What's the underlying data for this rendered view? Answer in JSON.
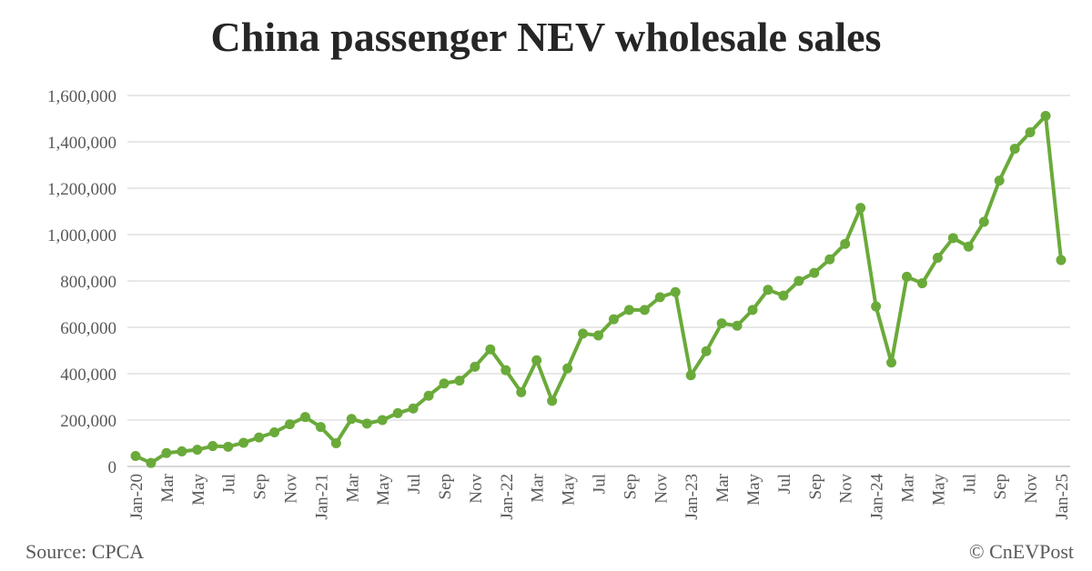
{
  "chart_data": {
    "type": "line",
    "title": "China passenger NEV wholesale sales",
    "xlabel": "",
    "ylabel": "",
    "ylim": [
      0,
      1600000
    ],
    "yticks": [
      "0",
      "200,000",
      "400,000",
      "600,000",
      "800,000",
      "1,000,000",
      "1,200,000",
      "1,400,000",
      "1,600,000"
    ],
    "grid": true,
    "color": "#6aaa3a",
    "x": [
      "Jan-20",
      "Feb",
      "Mar",
      "Apr",
      "May",
      "Jun",
      "Jul",
      "Aug",
      "Sep",
      "Oct",
      "Nov",
      "Dec",
      "Jan-21",
      "Feb",
      "Mar",
      "Apr",
      "May",
      "Jun",
      "Jul",
      "Aug",
      "Sep",
      "Oct",
      "Nov",
      "Dec",
      "Jan-22",
      "Feb",
      "Mar",
      "Apr",
      "May",
      "Jun",
      "Jul",
      "Aug",
      "Sep",
      "Oct",
      "Nov",
      "Dec",
      "Jan-23",
      "Feb",
      "Mar",
      "Apr",
      "May",
      "Jun",
      "Jul",
      "Aug",
      "Sep",
      "Oct",
      "Nov",
      "Dec",
      "Jan-24",
      "Feb",
      "Mar",
      "Apr",
      "May",
      "Jun",
      "Jul",
      "Aug",
      "Sep",
      "Oct",
      "Nov",
      "Dec",
      "Jan-25"
    ],
    "xtick_labels": [
      "Jan-20",
      "Mar",
      "May",
      "Jul",
      "Sep",
      "Nov",
      "Jan-21",
      "Mar",
      "May",
      "Jul",
      "Sep",
      "Nov",
      "Jan-22",
      "Mar",
      "May",
      "Jul",
      "Sep",
      "Nov",
      "Jan-23",
      "Mar",
      "May",
      "Jul",
      "Sep",
      "Nov",
      "Jan-24",
      "Mar",
      "May",
      "Jul",
      "Sep",
      "Nov",
      "Jan-25"
    ],
    "values": [
      45000,
      15000,
      58000,
      65000,
      72000,
      88000,
      85000,
      102000,
      125000,
      147000,
      182000,
      213000,
      170000,
      100000,
      205000,
      185000,
      200000,
      230000,
      250000,
      305000,
      358000,
      370000,
      430000,
      505000,
      415000,
      320000,
      458000,
      283000,
      423000,
      573000,
      565000,
      635000,
      675000,
      675000,
      730000,
      752000,
      393000,
      497000,
      617000,
      607000,
      675000,
      762000,
      737000,
      800000,
      835000,
      893000,
      960000,
      1115000,
      690000,
      448000,
      818000,
      790000,
      900000,
      985000,
      948000,
      1055000,
      1233000,
      1370000,
      1441000,
      1512000,
      890000
    ]
  },
  "footer": {
    "source": "Source: CPCA",
    "credit": "© CnEVPost"
  }
}
